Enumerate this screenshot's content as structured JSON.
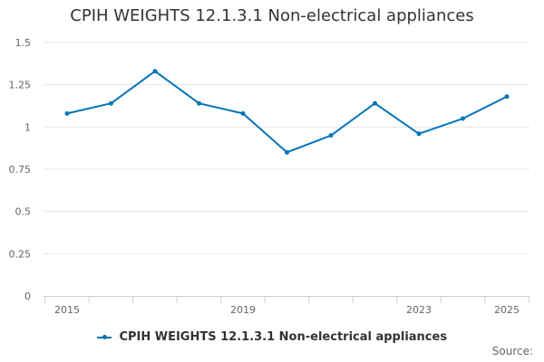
{
  "chart_data": {
    "type": "line",
    "title": "CPIH WEIGHTS 12.1.3.1 Non-electrical appliances",
    "x": [
      2015,
      2016,
      2017,
      2018,
      2019,
      2020,
      2021,
      2022,
      2023,
      2024,
      2025
    ],
    "x_tick_labels": [
      "2015",
      "2019",
      "2023",
      "2025"
    ],
    "x_tick_values": [
      2015,
      2019,
      2023,
      2025
    ],
    "y_tick_labels": [
      "0",
      "0.25",
      "0.5",
      "0.75",
      "1",
      "1.25",
      "1.5"
    ],
    "y_tick_values": [
      0,
      0.25,
      0.5,
      0.75,
      1,
      1.25,
      1.5
    ],
    "ylim": [
      0,
      1.5
    ],
    "xlabel": "",
    "ylabel": "",
    "grid": true,
    "legend_position": "bottom",
    "series": [
      {
        "name": "CPIH WEIGHTS 12.1.3.1 Non-electrical appliances",
        "color": "#0075b9",
        "values": [
          1.08,
          1.14,
          1.33,
          1.14,
          1.08,
          0.85,
          0.95,
          1.14,
          0.96,
          1.05,
          1.18
        ]
      }
    ]
  },
  "source_label": "Source:"
}
